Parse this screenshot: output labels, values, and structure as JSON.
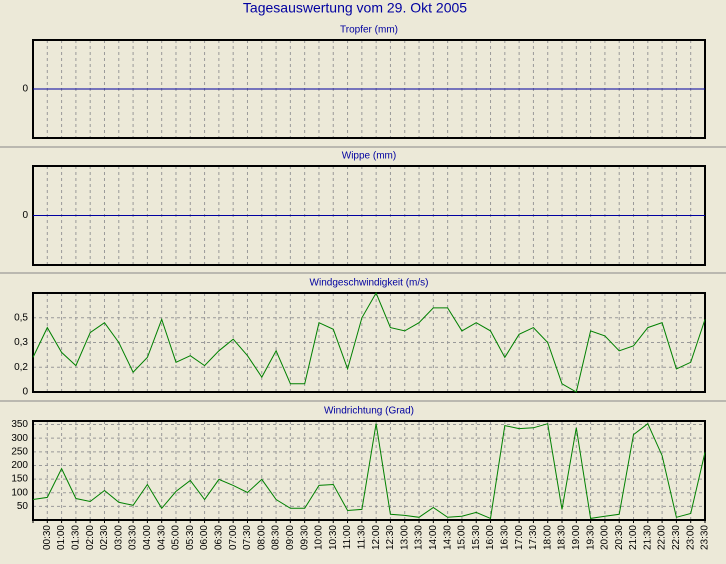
{
  "title": "Tagesauswertung vom 29. Okt 2005",
  "chart_data": [
    {
      "type": "line",
      "title": "Tropfer (mm)",
      "color": "#0000a0",
      "grid": true,
      "values": [
        0,
        0,
        0,
        0,
        0,
        0,
        0,
        0,
        0,
        0,
        0,
        0,
        0,
        0,
        0,
        0,
        0,
        0,
        0,
        0,
        0,
        0,
        0,
        0,
        0,
        0,
        0,
        0,
        0,
        0,
        0,
        0,
        0,
        0,
        0,
        0,
        0,
        0,
        0,
        0,
        0,
        0,
        0,
        0,
        0,
        0,
        0,
        0
      ],
      "ylim": [
        -1,
        1
      ],
      "yticks": [
        0
      ]
    },
    {
      "type": "line",
      "title": "Wippe (mm)",
      "color": "#0000a0",
      "grid": true,
      "values": [
        0,
        0,
        0,
        0,
        0,
        0,
        0,
        0,
        0,
        0,
        0,
        0,
        0,
        0,
        0,
        0,
        0,
        0,
        0,
        0,
        0,
        0,
        0,
        0,
        0,
        0,
        0,
        0,
        0,
        0,
        0,
        0,
        0,
        0,
        0,
        0,
        0,
        0,
        0,
        0,
        0,
        0,
        0,
        0,
        0,
        0,
        0,
        0
      ],
      "ylim": [
        -1,
        1
      ],
      "yticks": [
        0
      ]
    },
    {
      "type": "line",
      "title": "Windgeschwindigkeit (m/s)",
      "color": "#008000",
      "grid": true,
      "values": [
        0.21,
        0.39,
        0.24,
        0.16,
        0.36,
        0.42,
        0.3,
        0.12,
        0.21,
        0.44,
        0.18,
        0.22,
        0.16,
        0.25,
        0.32,
        0.22,
        0.09,
        0.25,
        0.05,
        0.05,
        0.42,
        0.38,
        0.14,
        0.45,
        0.6,
        0.39,
        0.37,
        0.42,
        0.51,
        0.51,
        0.37,
        0.42,
        0.37,
        0.21,
        0.35,
        0.39,
        0.3,
        0.05,
        0,
        0.37,
        0.34,
        0.25,
        0.28,
        0.39,
        0.42,
        0.14,
        0.18,
        0.44
      ],
      "ylim": [
        0,
        0.6
      ],
      "yticks": [
        0,
        {
          "value": 0.15,
          "label": "0,2"
        },
        {
          "value": 0.3,
          "label": "0,3"
        },
        {
          "value": 0.45,
          "label": "0,5"
        }
      ]
    },
    {
      "type": "line",
      "title": "Windrichtung (Grad)",
      "color": "#008000",
      "grid": true,
      "categories": [
        null,
        "00:30",
        "01:00",
        "01:30",
        "02:00",
        "02:30",
        "03:00",
        "03:30",
        "04:00",
        "04:30",
        "05:00",
        "05:30",
        "06:00",
        "06:30",
        "07:00",
        "07:30",
        "08:00",
        "08:30",
        "09:00",
        "09:30",
        "10:00",
        "10:30",
        "11:00",
        "11:30",
        "12:00",
        "12:30",
        "13:00",
        "13:30",
        "14:00",
        "14:30",
        "15:00",
        "15:30",
        "16:00",
        "16:30",
        "17:00",
        "17:30",
        "18:00",
        "18:30",
        "19:00",
        "19:30",
        "20:00",
        "20:30",
        "21:00",
        "21:30",
        "22:00",
        "22:30",
        "23:00",
        "23:30"
      ],
      "values": [
        75,
        83,
        188,
        79,
        68,
        108,
        65,
        54,
        130,
        43,
        105,
        145,
        75,
        149,
        127,
        101,
        149,
        75,
        43,
        43,
        127,
        130,
        35,
        39,
        353,
        21,
        17,
        10,
        46,
        10,
        14,
        28,
        6,
        346,
        335,
        338,
        353,
        39,
        338,
        6,
        14,
        21,
        313,
        353,
        236,
        10,
        24,
        248
      ],
      "ylim": [
        0,
        363
      ],
      "yticks": [
        50,
        100,
        150,
        200,
        250,
        300,
        350
      ]
    }
  ]
}
